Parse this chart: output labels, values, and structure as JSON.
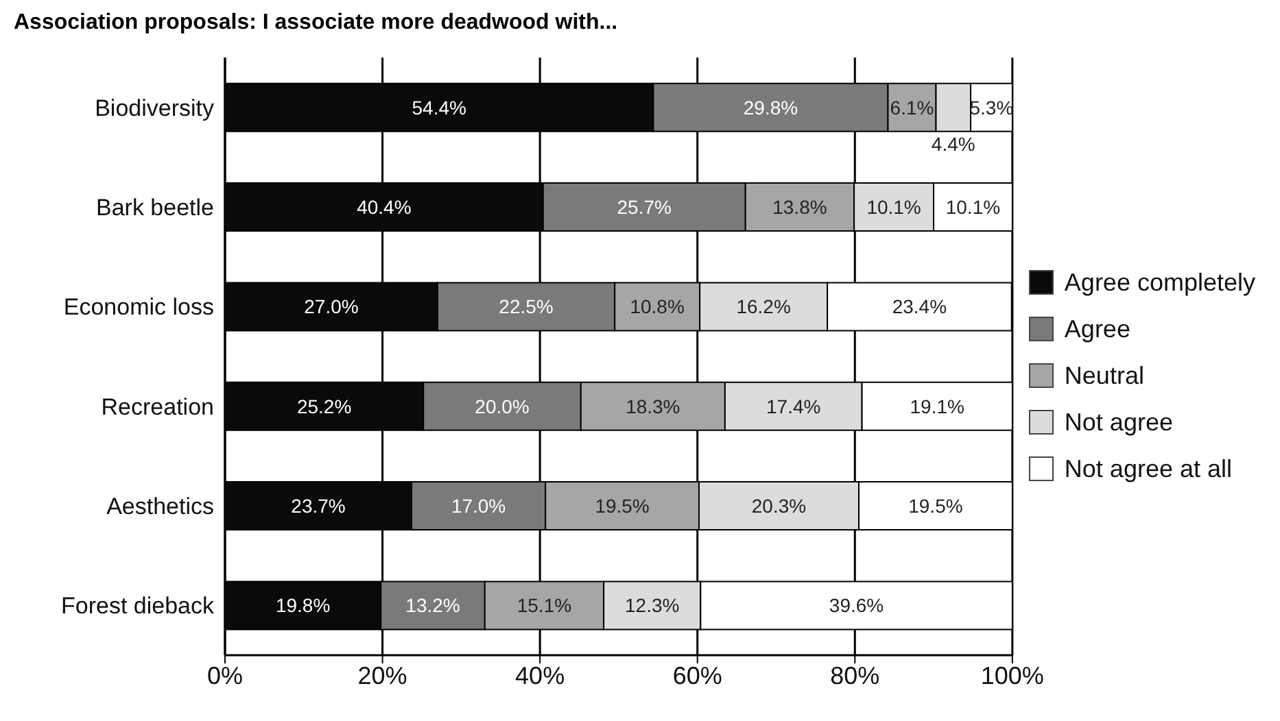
{
  "chart_data": {
    "type": "bar",
    "orientation": "horizontal",
    "stacked": true,
    "title": "Association proposals: I associate more deadwood with...",
    "categories": [
      "Biodiversity",
      "Bark beetle",
      "Economic loss",
      "Recreation",
      "Aesthetics",
      "Forest dieback"
    ],
    "series": [
      {
        "name": "Agree completely",
        "color": "#0a0a0a",
        "values": [
          54.4,
          40.4,
          27.0,
          25.2,
          23.7,
          19.8
        ],
        "value_labels": [
          "54.4%",
          "40.4%",
          "27.0%",
          "25.2%",
          "23.7%",
          "19.8%"
        ]
      },
      {
        "name": "Agree",
        "color": "#7a7a7a",
        "values": [
          29.8,
          25.7,
          22.5,
          20.0,
          17.0,
          13.2
        ],
        "value_labels": [
          "29.8%",
          "25.7%",
          "22.5%",
          "20.0%",
          "17.0%",
          "13.2%"
        ]
      },
      {
        "name": "Neutral",
        "color": "#a6a6a6",
        "values": [
          6.1,
          13.8,
          10.8,
          18.3,
          19.5,
          15.1
        ],
        "value_labels": [
          "6.1%",
          "13.8%",
          "10.8%",
          "18.3%",
          "19.5%",
          "15.1%"
        ]
      },
      {
        "name": "Not agree",
        "color": "#dcdcdc",
        "values": [
          4.4,
          10.1,
          16.2,
          17.4,
          20.3,
          12.3
        ],
        "value_labels": [
          "4.4%",
          "10.1%",
          "16.2%",
          "17.4%",
          "20.3%",
          "12.3%"
        ]
      },
      {
        "name": "Not agree at all",
        "color": "#ffffff",
        "values": [
          5.3,
          10.1,
          23.4,
          19.1,
          19.5,
          39.6
        ],
        "value_labels": [
          "5.3%",
          "10.1%",
          "23.4%",
          "19.1%",
          "19.5%",
          "39.6%"
        ]
      }
    ],
    "xlim": [
      0,
      100
    ],
    "xticks": [
      {
        "value": 0,
        "label": "0%"
      },
      {
        "value": 20,
        "label": "20%"
      },
      {
        "value": 40,
        "label": "40%"
      },
      {
        "value": 60,
        "label": "60%"
      },
      {
        "value": 80,
        "label": "80%"
      },
      {
        "value": 100,
        "label": "100%"
      }
    ],
    "grid": "x",
    "legend": "right"
  }
}
